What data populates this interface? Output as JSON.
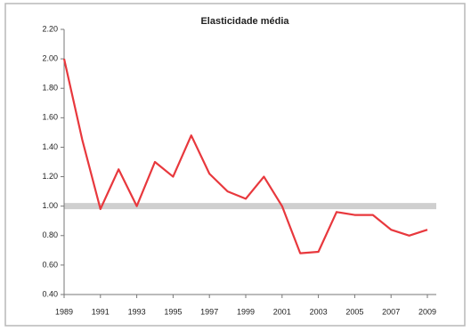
{
  "chart_data": {
    "type": "line",
    "title": "Elasticidade média",
    "x": [
      1989,
      1990,
      1991,
      1992,
      1993,
      1994,
      1995,
      1996,
      1997,
      1998,
      1999,
      2000,
      2001,
      2002,
      2003,
      2004,
      2005,
      2006,
      2007,
      2008,
      2009
    ],
    "series": [
      {
        "name": "Elasticidade",
        "color": "#e8383d",
        "values": [
          2.0,
          1.45,
          0.98,
          1.25,
          1.0,
          1.3,
          1.2,
          1.48,
          1.22,
          1.1,
          1.05,
          1.2,
          1.0,
          0.68,
          0.69,
          0.96,
          0.94,
          0.94,
          0.84,
          0.8,
          0.84
        ]
      }
    ],
    "xlim": [
      1989,
      2009
    ],
    "xticks": [
      1989,
      1991,
      1993,
      1995,
      1997,
      1999,
      2001,
      2003,
      2005,
      2007,
      2009
    ],
    "ylim": [
      0.4,
      2.2
    ],
    "yticks": [
      {
        "value": 0.4,
        "label": "0.40"
      },
      {
        "value": 0.6,
        "label": "0.60"
      },
      {
        "value": 0.8,
        "label": "0.80"
      },
      {
        "value": 1.0,
        "label": "1.00"
      },
      {
        "value": 1.2,
        "label": "1.20"
      },
      {
        "value": 1.4,
        "label": "1.40"
      },
      {
        "value": 1.6,
        "label": "1.60"
      },
      {
        "value": 1.8,
        "label": "1.80"
      },
      {
        "value": 2.0,
        "label": "2.00"
      },
      {
        "value": 2.2,
        "label": "2.20"
      }
    ],
    "reference_line": 1.0,
    "reference_color": "#cfcfcf",
    "grid": false
  }
}
